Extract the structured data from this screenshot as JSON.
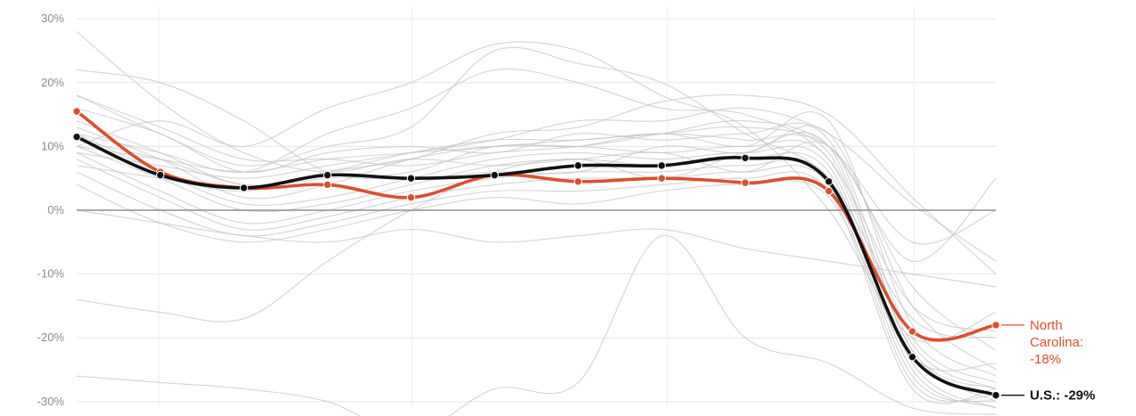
{
  "chart_data": {
    "type": "line",
    "title": "",
    "xlabel": "",
    "ylabel": "",
    "x": [
      1,
      2,
      3,
      4,
      5,
      6,
      7,
      8,
      9,
      10,
      11,
      12
    ],
    "ylim": [
      -31,
      31
    ],
    "yticks": [
      30,
      20,
      10,
      0,
      -10,
      -20,
      -30
    ],
    "ytick_labels": [
      "30%",
      "20%",
      "10%",
      "0%",
      "-10%",
      "-20%",
      "-30%"
    ],
    "grid": true,
    "series": [
      {
        "name": "U.S.",
        "color": "#111111",
        "values": [
          11.5,
          5.5,
          3.5,
          5.5,
          5.0,
          5.5,
          7.0,
          7.0,
          8.2,
          4.5,
          -23,
          -29
        ]
      },
      {
        "name": "North Carolina",
        "color": "#d9502e",
        "values": [
          15.5,
          6.0,
          3.5,
          4.0,
          2.0,
          5.5,
          4.5,
          5.0,
          4.3,
          3.0,
          -19,
          -18
        ]
      }
    ],
    "background_series_color": "#c4c4c4",
    "background_series": [
      [
        28,
        17,
        9,
        6,
        8,
        7,
        8,
        9,
        6,
        10,
        -12,
        -22
      ],
      [
        22,
        20,
        14,
        6,
        5,
        6,
        6,
        10,
        9,
        12,
        -15,
        -25
      ],
      [
        18,
        13,
        8,
        8,
        7,
        9,
        10,
        12,
        10,
        14,
        -18,
        -26
      ],
      [
        16,
        12,
        6,
        9,
        10,
        9,
        12,
        11,
        12,
        11,
        -20,
        -27
      ],
      [
        14,
        9,
        4,
        6,
        9,
        11,
        11,
        12,
        11,
        9,
        -21,
        -28
      ],
      [
        13,
        8,
        2,
        4,
        8,
        10,
        10,
        9,
        10,
        8,
        -22,
        -30
      ],
      [
        12,
        6,
        1,
        2,
        5,
        8,
        9,
        8,
        9,
        7,
        -24,
        -31
      ],
      [
        10,
        5,
        0,
        1,
        4,
        7,
        8,
        7,
        8,
        6,
        -25,
        -31
      ],
      [
        9,
        3,
        -2,
        0,
        3,
        5,
        6,
        6,
        7,
        5,
        -26,
        -30
      ],
      [
        8,
        2,
        -3,
        -1,
        2,
        4,
        5,
        5,
        6,
        4,
        -27,
        -29
      ],
      [
        6,
        0,
        -4,
        -2,
        1,
        3,
        3,
        4,
        5,
        3,
        -28,
        -28
      ],
      [
        4,
        -2,
        -5,
        -3,
        0,
        2,
        1,
        3,
        4,
        2,
        -23,
        -24
      ],
      [
        10,
        14,
        10,
        16,
        20,
        26,
        25,
        18,
        13,
        0,
        -20,
        -16
      ],
      [
        18,
        12,
        7,
        10,
        13,
        25,
        23,
        20,
        12,
        5,
        -17,
        -20
      ],
      [
        12,
        9,
        6,
        12,
        16,
        22,
        20,
        16,
        15,
        8,
        -15,
        -19
      ],
      [
        7,
        5,
        3,
        6,
        8,
        12,
        13,
        17,
        18,
        15,
        2,
        -10
      ],
      [
        9,
        7,
        5,
        7,
        9,
        11,
        14,
        14,
        16,
        12,
        1,
        -8
      ],
      [
        11,
        8,
        4,
        5,
        6,
        10,
        10,
        12,
        14,
        10,
        -8,
        5
      ],
      [
        10,
        8,
        6,
        8,
        9,
        10,
        11,
        12,
        13,
        10,
        -5,
        0
      ],
      [
        -14,
        -16,
        -17,
        -8,
        0,
        6,
        8,
        5,
        9,
        10,
        -22,
        -28
      ],
      [
        -26,
        -27,
        -28,
        -30,
        -35,
        -28,
        -27,
        -4,
        -20,
        -24,
        -31,
        -32
      ],
      [
        0,
        -2,
        -4,
        -5,
        -3,
        -5,
        -4,
        -3,
        -6,
        -8,
        -10,
        -12
      ]
    ],
    "annotations": [
      {
        "series": "North Carolina",
        "lines": [
          "North",
          "Carolina:",
          "-18%"
        ],
        "color": "#d9502e"
      },
      {
        "series": "U.S.",
        "lines": [
          "U.S.: -29%"
        ],
        "color": "#111111"
      }
    ]
  }
}
